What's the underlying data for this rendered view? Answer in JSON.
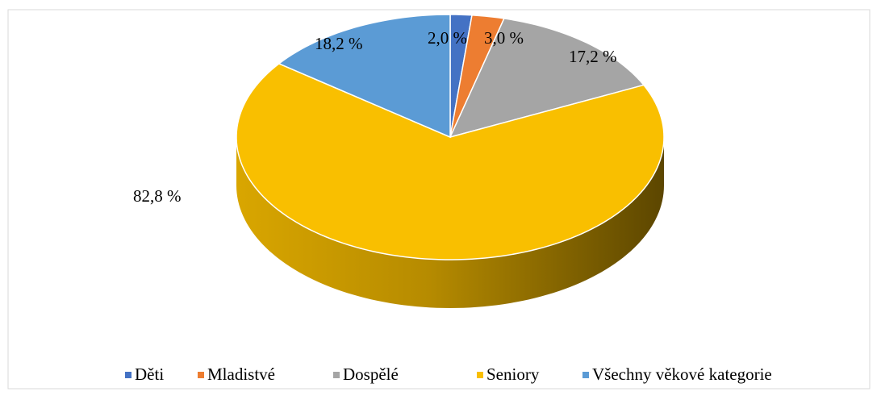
{
  "chart_data": {
    "type": "pie",
    "categories": [
      "Děti",
      "Mladistvé",
      "Dospělé",
      "Seniory",
      "Všechny věkové kategorie"
    ],
    "values": [
      2.0,
      3.0,
      17.2,
      82.8,
      18.2
    ],
    "value_labels": [
      "2,0 %",
      "3,0 %",
      "17,2 %",
      "82,8 %",
      "18,2 %"
    ],
    "colors": [
      "#4472c4",
      "#ed7d31",
      "#a5a5a5",
      "#f9bf00",
      "#5b9bd5"
    ],
    "legend": "bottom"
  }
}
